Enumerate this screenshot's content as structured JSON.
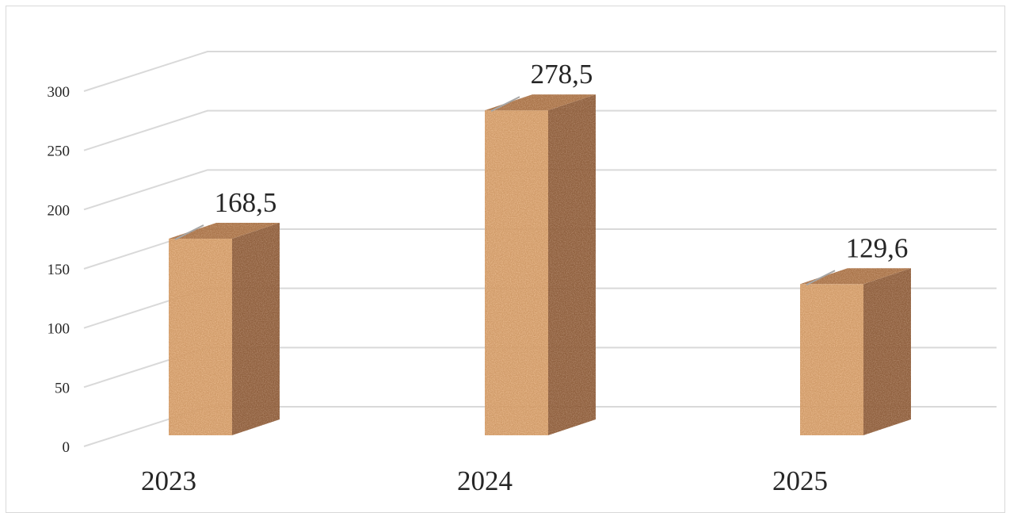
{
  "chart_data": {
    "type": "bar",
    "style": "3d-column",
    "title": "",
    "xlabel": "",
    "ylabel": "",
    "categories": [
      "2023",
      "2024",
      "2025"
    ],
    "values": [
      168.5,
      278.5,
      129.6
    ],
    "data_labels": [
      "168,5",
      "278,5",
      "129,6"
    ],
    "ylim": [
      0,
      300
    ],
    "yticks": [
      0,
      50,
      100,
      150,
      200,
      250,
      300
    ],
    "grid": true,
    "legend": "none",
    "colors": {
      "bar_front": "#cf9a68",
      "bar_side": "#8e5f3c",
      "bar_top": "#a8734a",
      "grid": "#d9d9d9"
    }
  }
}
